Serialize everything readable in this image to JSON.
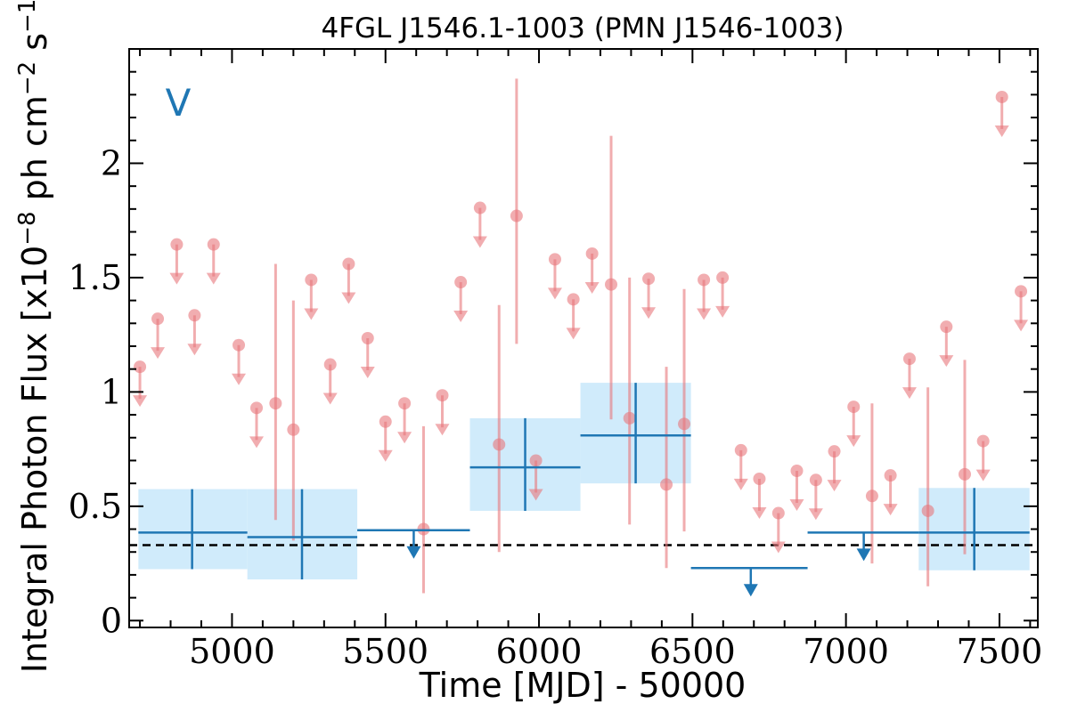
{
  "chart_data": {
    "type": "scatter",
    "title": "4FGL J1546.1-1003 (PMN J1546-1003)",
    "xlabel": "Time [MJD] - 50000",
    "ylabel": "Integral Photon Flux [x10",
    "ylabel_exp1": "−8",
    "ylabel_mid": " ph cm",
    "ylabel_exp2": "−2",
    "ylabel_mid2": " s",
    "ylabel_exp3": "−1",
    "ylabel_end": "]",
    "panel_letter": "V",
    "xlim": [
      4665,
      7625
    ],
    "ylim": [
      -0.03,
      2.5
    ],
    "x_ticks": [
      5000,
      5500,
      6000,
      6500,
      7000,
      7500
    ],
    "x_tick_labels": [
      "5000",
      "5500",
      "6000",
      "6500",
      "7000",
      "7500"
    ],
    "y_ticks": [
      0,
      0.5,
      1,
      1.5,
      2
    ],
    "y_tick_labels": [
      "0",
      "0.5",
      "1",
      "1.5",
      "2"
    ],
    "reference_line": 0.33,
    "colors": {
      "short_bins": "#e8777b",
      "long_bins": "#1f77b4",
      "long_band": "#cdeafb",
      "reference": "#000000"
    },
    "short_bin_points": [
      {
        "x": 5142,
        "y": 0.95,
        "ylo": 0.44,
        "yhi": 1.56
      },
      {
        "x": 5200,
        "y": 0.835,
        "ylo": 0.35,
        "yhi": 1.4
      },
      {
        "x": 5624,
        "y": 0.4,
        "ylo": 0.12,
        "yhi": 0.85
      },
      {
        "x": 5870,
        "y": 0.77,
        "ylo": 0.3,
        "yhi": 1.38
      },
      {
        "x": 5927,
        "y": 1.77,
        "ylo": 1.21,
        "yhi": 2.37
      },
      {
        "x": 6235,
        "y": 1.47,
        "ylo": 0.88,
        "yhi": 2.12
      },
      {
        "x": 6295,
        "y": 0.885,
        "ylo": 0.42,
        "yhi": 1.5
      },
      {
        "x": 6415,
        "y": 0.595,
        "ylo": 0.23,
        "yhi": 1.11
      },
      {
        "x": 6473,
        "y": 0.86,
        "ylo": 0.39,
        "yhi": 1.45
      },
      {
        "x": 7085,
        "y": 0.545,
        "ylo": 0.25,
        "yhi": 0.95
      },
      {
        "x": 7267,
        "y": 0.48,
        "ylo": 0.15,
        "yhi": 1.02
      },
      {
        "x": 7387,
        "y": 0.64,
        "ylo": 0.29,
        "yhi": 1.14
      }
    ],
    "short_bin_upper_limits": [
      {
        "x": 4700,
        "y": 1.11
      },
      {
        "x": 4758,
        "y": 1.32
      },
      {
        "x": 4820,
        "y": 1.645
      },
      {
        "x": 4878,
        "y": 1.335
      },
      {
        "x": 4940,
        "y": 1.645
      },
      {
        "x": 5022,
        "y": 1.205
      },
      {
        "x": 5080,
        "y": 0.93
      },
      {
        "x": 5258,
        "y": 1.49
      },
      {
        "x": 5320,
        "y": 1.12
      },
      {
        "x": 5380,
        "y": 1.56
      },
      {
        "x": 5442,
        "y": 1.235
      },
      {
        "x": 5500,
        "y": 0.87
      },
      {
        "x": 5562,
        "y": 0.95
      },
      {
        "x": 5685,
        "y": 0.985
      },
      {
        "x": 5745,
        "y": 1.48
      },
      {
        "x": 5808,
        "y": 1.805
      },
      {
        "x": 5990,
        "y": 0.7
      },
      {
        "x": 6052,
        "y": 1.58
      },
      {
        "x": 6112,
        "y": 1.405
      },
      {
        "x": 6173,
        "y": 1.605
      },
      {
        "x": 6357,
        "y": 1.495
      },
      {
        "x": 6537,
        "y": 1.49
      },
      {
        "x": 6598,
        "y": 1.5
      },
      {
        "x": 6658,
        "y": 0.745
      },
      {
        "x": 6718,
        "y": 0.62
      },
      {
        "x": 6780,
        "y": 0.47
      },
      {
        "x": 6840,
        "y": 0.655
      },
      {
        "x": 6902,
        "y": 0.615
      },
      {
        "x": 6962,
        "y": 0.74
      },
      {
        "x": 7025,
        "y": 0.935
      },
      {
        "x": 7145,
        "y": 0.635
      },
      {
        "x": 7207,
        "y": 1.145
      },
      {
        "x": 7327,
        "y": 1.285
      },
      {
        "x": 7447,
        "y": 0.785
      },
      {
        "x": 7508,
        "y": 2.29
      },
      {
        "x": 7570,
        "y": 1.44
      }
    ],
    "long_bin_points": [
      {
        "x": 4870,
        "xlo": 4695,
        "xhi": 5050,
        "y": 0.385,
        "ylo": 0.225,
        "yhi": 0.575
      },
      {
        "x": 5228,
        "xlo": 5050,
        "xhi": 5408,
        "y": 0.365,
        "ylo": 0.18,
        "yhi": 0.575
      },
      {
        "x": 5955,
        "xlo": 5775,
        "xhi": 6135,
        "y": 0.67,
        "ylo": 0.48,
        "yhi": 0.885
      },
      {
        "x": 6315,
        "xlo": 6135,
        "xhi": 6495,
        "y": 0.81,
        "ylo": 0.6,
        "yhi": 1.04
      },
      {
        "x": 7418,
        "xlo": 7237,
        "xhi": 7598,
        "y": 0.385,
        "ylo": 0.22,
        "yhi": 0.58
      }
    ],
    "long_bin_upper_limits": [
      {
        "x": 5592,
        "xlo": 5408,
        "xhi": 5775,
        "y": 0.395
      },
      {
        "x": 6690,
        "xlo": 6495,
        "xhi": 6875,
        "y": 0.23
      },
      {
        "x": 7058,
        "xlo": 6875,
        "xhi": 7237,
        "y": 0.385
      }
    ]
  }
}
